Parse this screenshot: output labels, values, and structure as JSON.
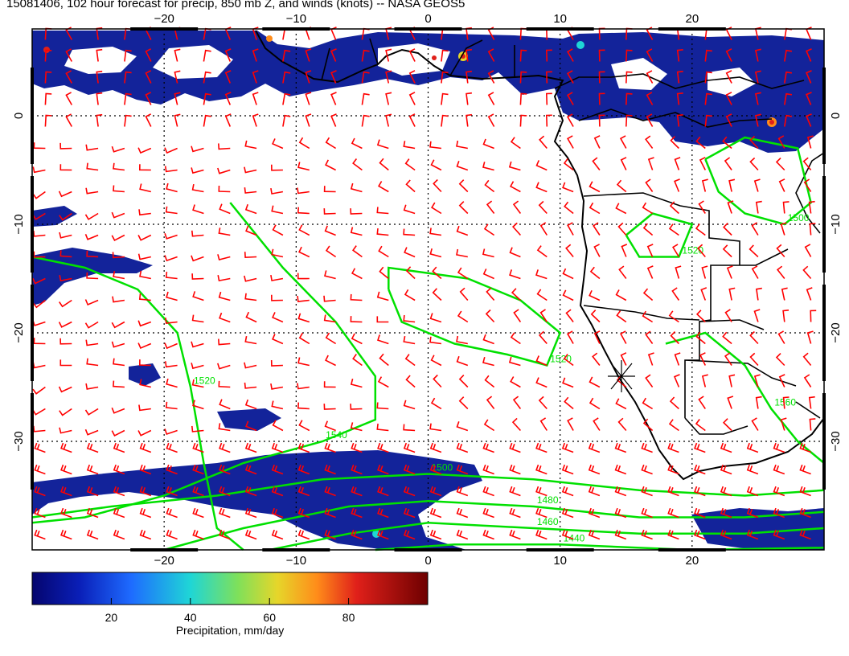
{
  "title": "15081406, 102 hour forecast for precip, 850 mb Z, and winds (knots) -- NASA GEOS5",
  "map": {
    "lon_range": [
      -30,
      30
    ],
    "lat_range": [
      -40,
      8
    ],
    "lon_ticks": [
      {
        "value": -20,
        "label": "−20"
      },
      {
        "value": -10,
        "label": "−10"
      },
      {
        "value": 0,
        "label": "0"
      },
      {
        "value": 10,
        "label": "10"
      },
      {
        "value": 20,
        "label": "20"
      }
    ],
    "lat_ticks": [
      {
        "value": 0,
        "label": "0"
      },
      {
        "value": -10,
        "label": "−10"
      },
      {
        "value": -20,
        "label": "−20"
      },
      {
        "value": -30,
        "label": "−30"
      }
    ],
    "grid": "dotted",
    "colors": {
      "barb": "#ff0000",
      "contour": "#00e000",
      "coast": "#000000",
      "precip_low": "#0a1f8f",
      "precip_high": "#8b0000"
    }
  },
  "contours": [
    {
      "label": "1520",
      "points": [
        [
          -30,
          -13
        ],
        [
          -26,
          -14
        ],
        [
          -22,
          -16
        ],
        [
          -19,
          -20
        ],
        [
          -18,
          -25
        ],
        [
          -17,
          -32
        ],
        [
          -16,
          -38
        ],
        [
          -14,
          -40
        ]
      ]
    },
    {
      "label": "1540",
      "points": [
        [
          -15,
          -8
        ],
        [
          -11,
          -14
        ],
        [
          -7,
          -19
        ],
        [
          -4,
          -24
        ],
        [
          -4,
          -28
        ],
        [
          -8,
          -30
        ],
        [
          -14,
          -32
        ],
        [
          -20,
          -35
        ],
        [
          -26,
          -37
        ],
        [
          -30,
          -37.5
        ]
      ]
    },
    {
      "label": "1520",
      "points": [
        [
          -3,
          -16
        ],
        [
          -3,
          -14
        ],
        [
          3,
          -15
        ],
        [
          7,
          -17
        ],
        [
          10,
          -20
        ],
        [
          9,
          -23
        ],
        [
          6,
          -22
        ],
        [
          2,
          -21
        ],
        [
          -2,
          -19
        ],
        [
          -3,
          -16
        ]
      ]
    },
    {
      "label": "1500",
      "points": [
        [
          -30,
          -37
        ],
        [
          -24,
          -36
        ],
        [
          -16,
          -35
        ],
        [
          -8,
          -33.5
        ],
        [
          0,
          -33
        ],
        [
          8,
          -33.5
        ],
        [
          16,
          -34.5
        ],
        [
          24,
          -35
        ],
        [
          30,
          -34.5
        ]
      ]
    },
    {
      "label": "1480",
      "points": [
        [
          -20,
          -40
        ],
        [
          -14,
          -38
        ],
        [
          -6,
          -36
        ],
        [
          0,
          -35.5
        ],
        [
          8,
          -36
        ],
        [
          16,
          -37
        ],
        [
          24,
          -37
        ],
        [
          30,
          -36.5
        ]
      ]
    },
    {
      "label": "1460",
      "points": [
        [
          -12,
          -40
        ],
        [
          -6,
          -38.5
        ],
        [
          0,
          -37.5
        ],
        [
          8,
          -38
        ],
        [
          16,
          -38.5
        ],
        [
          24,
          -38.5
        ],
        [
          30,
          -38
        ]
      ]
    },
    {
      "label": "1440",
      "points": [
        [
          -4,
          -40
        ],
        [
          2,
          -39.5
        ],
        [
          10,
          -39.5
        ],
        [
          20,
          -40
        ],
        [
          30,
          -39.8
        ]
      ]
    },
    {
      "label": "1520",
      "points": [
        [
          15,
          -11
        ],
        [
          17,
          -9
        ],
        [
          20,
          -10
        ],
        [
          19,
          -13
        ],
        [
          16,
          -13
        ],
        [
          15,
          -11
        ]
      ]
    },
    {
      "label": "1500",
      "points": [
        [
          21,
          -4
        ],
        [
          24,
          -2
        ],
        [
          28,
          -3
        ],
        [
          29,
          -8
        ],
        [
          27,
          -10
        ],
        [
          24,
          -9
        ],
        [
          22,
          -7
        ],
        [
          21,
          -4
        ]
      ]
    },
    {
      "label": "1560",
      "points": [
        [
          18,
          -21
        ],
        [
          21,
          -20
        ],
        [
          24,
          -23
        ],
        [
          26,
          -27
        ],
        [
          28,
          -30
        ],
        [
          30,
          -32
        ]
      ]
    }
  ],
  "legend": {
    "label": "Precipitation, mm/day",
    "ticks": [
      {
        "value": 20,
        "label": "20"
      },
      {
        "value": 40,
        "label": "40"
      },
      {
        "value": 60,
        "label": "60"
      },
      {
        "value": 80,
        "label": "80"
      }
    ],
    "range": [
      0,
      100
    ]
  }
}
